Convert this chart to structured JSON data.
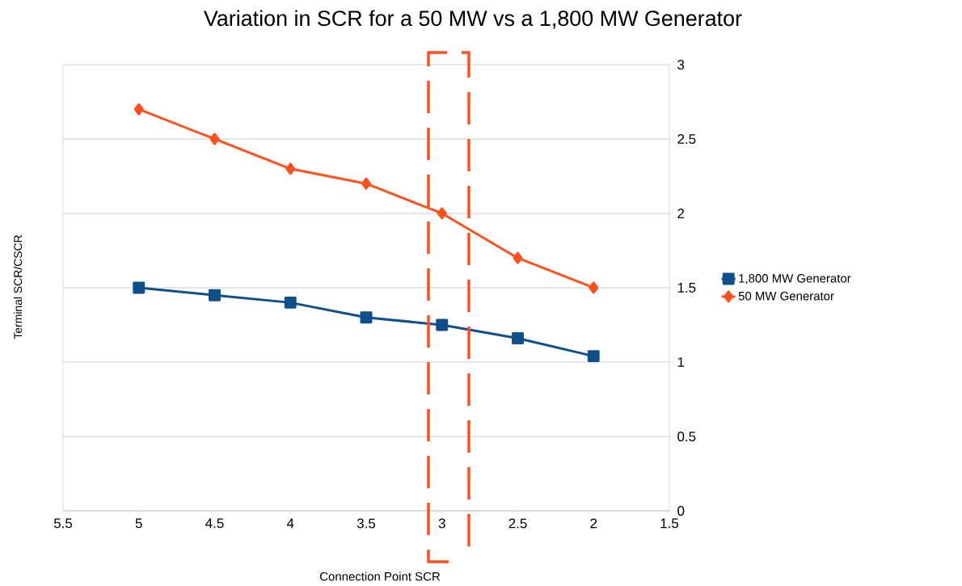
{
  "chart_data": {
    "type": "line",
    "title": "Variation in SCR for a 50 MW vs a 1,800 MW Generator",
    "xlabel": "Connection Point SCR",
    "ylabel": "Terminal SCR/CSCR",
    "x": [
      5,
      4.5,
      4,
      3.5,
      3,
      2.5,
      2
    ],
    "series": [
      {
        "name": "1,800 MW Generator",
        "color": "#0f4f8c",
        "marker": "square",
        "values": [
          1.5,
          1.45,
          1.4,
          1.3,
          1.25,
          1.16,
          1.04
        ]
      },
      {
        "name": "50 MW Generator",
        "color": "#ff4f1a",
        "marker": "diamond",
        "values": [
          2.7,
          2.5,
          2.3,
          2.2,
          2.0,
          1.7,
          1.5
        ]
      }
    ],
    "xlim": [
      5.5,
      1.5
    ],
    "xticks": [
      5.5,
      5,
      4.5,
      4,
      3.5,
      3,
      2.5,
      2,
      1.5
    ],
    "ylim": [
      0,
      3
    ],
    "yticks": [
      0,
      0.5,
      1,
      1.5,
      2,
      2.5,
      3
    ],
    "grid": "y",
    "legend": "right",
    "line_style": "solid"
  }
}
